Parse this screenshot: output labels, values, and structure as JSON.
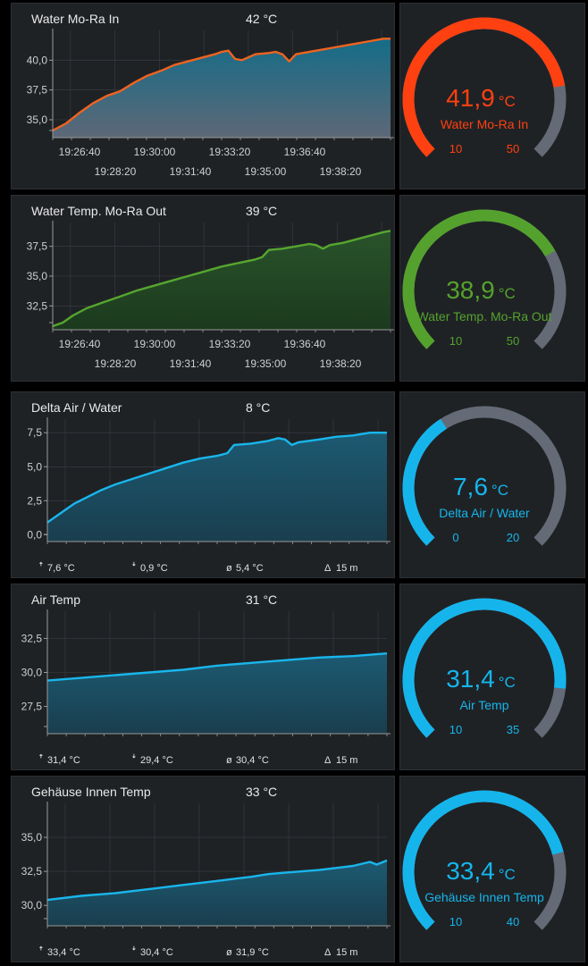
{
  "rows": [
    {
      "chart": {
        "title": "Water Mo-Ra In",
        "current": "42 °C",
        "type": "area",
        "style": "orange-line-teal-area",
        "ylim": [
          33.5,
          42.5
        ],
        "y_ticks": [
          "35,0",
          "37,5",
          "40,0"
        ],
        "y_tick_values": [
          35,
          37.5,
          40
        ],
        "x_ticks_upper": [
          "19:26:40",
          "19:30:00",
          "19:33:20",
          "19:36:40"
        ],
        "x_ticks_lower": [
          "19:28:20",
          "19:31:40",
          "19:35:00",
          "19:38:20"
        ],
        "stats": null,
        "points": [
          [
            0,
            34.1
          ],
          [
            0.04,
            34.7
          ],
          [
            0.08,
            35.6
          ],
          [
            0.12,
            36.4
          ],
          [
            0.16,
            37.0
          ],
          [
            0.2,
            37.4
          ],
          [
            0.24,
            38.1
          ],
          [
            0.28,
            38.7
          ],
          [
            0.32,
            39.1
          ],
          [
            0.36,
            39.6
          ],
          [
            0.4,
            39.9
          ],
          [
            0.44,
            40.2
          ],
          [
            0.48,
            40.5
          ],
          [
            0.5,
            40.7
          ],
          [
            0.52,
            40.8
          ],
          [
            0.54,
            40.1
          ],
          [
            0.56,
            40.0
          ],
          [
            0.6,
            40.5
          ],
          [
            0.64,
            40.6
          ],
          [
            0.66,
            40.7
          ],
          [
            0.68,
            40.5
          ],
          [
            0.7,
            39.9
          ],
          [
            0.72,
            40.5
          ],
          [
            0.74,
            40.6
          ],
          [
            0.78,
            40.8
          ],
          [
            0.82,
            41.0
          ],
          [
            0.86,
            41.2
          ],
          [
            0.9,
            41.4
          ],
          [
            0.94,
            41.6
          ],
          [
            0.98,
            41.8
          ],
          [
            1,
            41.8
          ]
        ]
      },
      "gauge": {
        "value": "41,9",
        "unit": "°C",
        "label": "Water Mo-Ra In",
        "min": "10",
        "max": "50",
        "numeric_value": 41.9,
        "numeric_min": 10,
        "numeric_max": 50,
        "color": "#ff4010",
        "text_color": "#ff4010"
      }
    },
    {
      "chart": {
        "title": "Water Temp. Mo-Ra Out",
        "current": "39 °C",
        "type": "area",
        "style": "green",
        "ylim": [
          30.5,
          39.5
        ],
        "y_ticks": [
          "32,5",
          "35,0",
          "37,5"
        ],
        "y_tick_values": [
          32.5,
          35,
          37.5
        ],
        "x_ticks_upper": [
          "19:26:40",
          "19:30:00",
          "19:33:20",
          "19:36:40"
        ],
        "x_ticks_lower": [
          "19:28:20",
          "19:31:40",
          "19:35:00",
          "19:38:20"
        ],
        "stats": null,
        "points": [
          [
            0,
            30.8
          ],
          [
            0.03,
            31.1
          ],
          [
            0.06,
            31.7
          ],
          [
            0.1,
            32.3
          ],
          [
            0.15,
            32.8
          ],
          [
            0.2,
            33.3
          ],
          [
            0.25,
            33.8
          ],
          [
            0.3,
            34.2
          ],
          [
            0.35,
            34.6
          ],
          [
            0.4,
            35.0
          ],
          [
            0.45,
            35.4
          ],
          [
            0.5,
            35.8
          ],
          [
            0.55,
            36.1
          ],
          [
            0.6,
            36.4
          ],
          [
            0.62,
            36.6
          ],
          [
            0.64,
            37.2
          ],
          [
            0.68,
            37.3
          ],
          [
            0.72,
            37.5
          ],
          [
            0.76,
            37.7
          ],
          [
            0.78,
            37.6
          ],
          [
            0.8,
            37.3
          ],
          [
            0.82,
            37.6
          ],
          [
            0.86,
            37.8
          ],
          [
            0.9,
            38.1
          ],
          [
            0.94,
            38.4
          ],
          [
            0.98,
            38.7
          ],
          [
            1,
            38.8
          ]
        ]
      },
      "gauge": {
        "value": "38,9",
        "unit": "°C",
        "label": "Water Temp. Mo-Ra Out",
        "min": "10",
        "max": "50",
        "numeric_value": 38.9,
        "numeric_min": 10,
        "numeric_max": 50,
        "color": "#54a22d",
        "text_color": "#54a22d"
      }
    },
    {
      "chart": {
        "title": "Delta Air / Water",
        "current": "8 °C",
        "type": "area",
        "style": "blue",
        "ylim": [
          -0.5,
          8.5
        ],
        "y_ticks": [
          "0,0",
          "2,5",
          "5,0",
          "7,5"
        ],
        "y_tick_values": [
          0,
          2.5,
          5,
          7.5
        ],
        "x_ticks_upper": [],
        "x_ticks_lower": [],
        "stats": {
          "max": "7,6 °C",
          "min": "0,9 °C",
          "avg": "5,4 °C",
          "span": "15 m"
        },
        "points": [
          [
            0,
            0.9
          ],
          [
            0.04,
            1.6
          ],
          [
            0.08,
            2.3
          ],
          [
            0.12,
            2.8
          ],
          [
            0.16,
            3.3
          ],
          [
            0.2,
            3.7
          ],
          [
            0.25,
            4.1
          ],
          [
            0.3,
            4.5
          ],
          [
            0.35,
            4.9
          ],
          [
            0.4,
            5.3
          ],
          [
            0.45,
            5.6
          ],
          [
            0.5,
            5.8
          ],
          [
            0.53,
            6.0
          ],
          [
            0.55,
            6.6
          ],
          [
            0.6,
            6.7
          ],
          [
            0.65,
            6.9
          ],
          [
            0.68,
            7.1
          ],
          [
            0.7,
            7.0
          ],
          [
            0.72,
            6.6
          ],
          [
            0.74,
            6.8
          ],
          [
            0.8,
            7.0
          ],
          [
            0.85,
            7.2
          ],
          [
            0.9,
            7.3
          ],
          [
            0.95,
            7.5
          ],
          [
            1,
            7.5
          ]
        ]
      },
      "gauge": {
        "value": "7,6",
        "unit": "°C",
        "label": "Delta Air / Water",
        "min": "0",
        "max": "20",
        "numeric_value": 7.6,
        "numeric_min": 0,
        "numeric_max": 20,
        "color": "#15b5ec",
        "text_color": "#15b5ec"
      }
    },
    {
      "chart": {
        "title": "Air Temp",
        "current": "31 °C",
        "type": "area",
        "style": "blue",
        "ylim": [
          25.5,
          34.5
        ],
        "y_ticks": [
          "27,5",
          "30,0",
          "32,5"
        ],
        "y_tick_values": [
          27.5,
          30,
          32.5
        ],
        "x_ticks_upper": [],
        "x_ticks_lower": [],
        "stats": {
          "max": "31,4 °C",
          "min": "29,4 °C",
          "avg": "30,4 °C",
          "span": "15 m"
        },
        "points": [
          [
            0,
            29.4
          ],
          [
            0.1,
            29.6
          ],
          [
            0.2,
            29.8
          ],
          [
            0.3,
            30.0
          ],
          [
            0.4,
            30.2
          ],
          [
            0.5,
            30.5
          ],
          [
            0.6,
            30.7
          ],
          [
            0.7,
            30.9
          ],
          [
            0.8,
            31.1
          ],
          [
            0.9,
            31.2
          ],
          [
            1,
            31.4
          ]
        ]
      },
      "gauge": {
        "value": "31,4",
        "unit": "°C",
        "label": "Air Temp",
        "min": "10",
        "max": "35",
        "numeric_value": 31.4,
        "numeric_min": 10,
        "numeric_max": 35,
        "color": "#15b5ec",
        "text_color": "#15b5ec"
      }
    },
    {
      "chart": {
        "title": "Gehäuse Innen Temp",
        "current": "33 °C",
        "type": "area",
        "style": "blue",
        "ylim": [
          28.5,
          37.5
        ],
        "y_ticks": [
          "30,0",
          "32,5",
          "35,0"
        ],
        "y_tick_values": [
          30,
          32.5,
          35
        ],
        "x_ticks_upper": [],
        "x_ticks_lower": [],
        "stats": {
          "max": "33,4 °C",
          "min": "30,4 °C",
          "avg": "31,9 °C",
          "span": "15 m"
        },
        "points": [
          [
            0,
            30.4
          ],
          [
            0.1,
            30.7
          ],
          [
            0.2,
            30.9
          ],
          [
            0.3,
            31.2
          ],
          [
            0.4,
            31.5
          ],
          [
            0.5,
            31.8
          ],
          [
            0.6,
            32.1
          ],
          [
            0.65,
            32.3
          ],
          [
            0.7,
            32.4
          ],
          [
            0.8,
            32.6
          ],
          [
            0.9,
            32.9
          ],
          [
            0.95,
            33.2
          ],
          [
            0.97,
            33.0
          ],
          [
            1,
            33.3
          ]
        ]
      },
      "gauge": {
        "value": "33,4",
        "unit": "°C",
        "label": "Gehäuse Innen Temp",
        "min": "10",
        "max": "40",
        "numeric_value": 33.4,
        "numeric_min": 10,
        "numeric_max": 40,
        "color": "#15b5ec",
        "text_color": "#15b5ec"
      }
    }
  ]
}
